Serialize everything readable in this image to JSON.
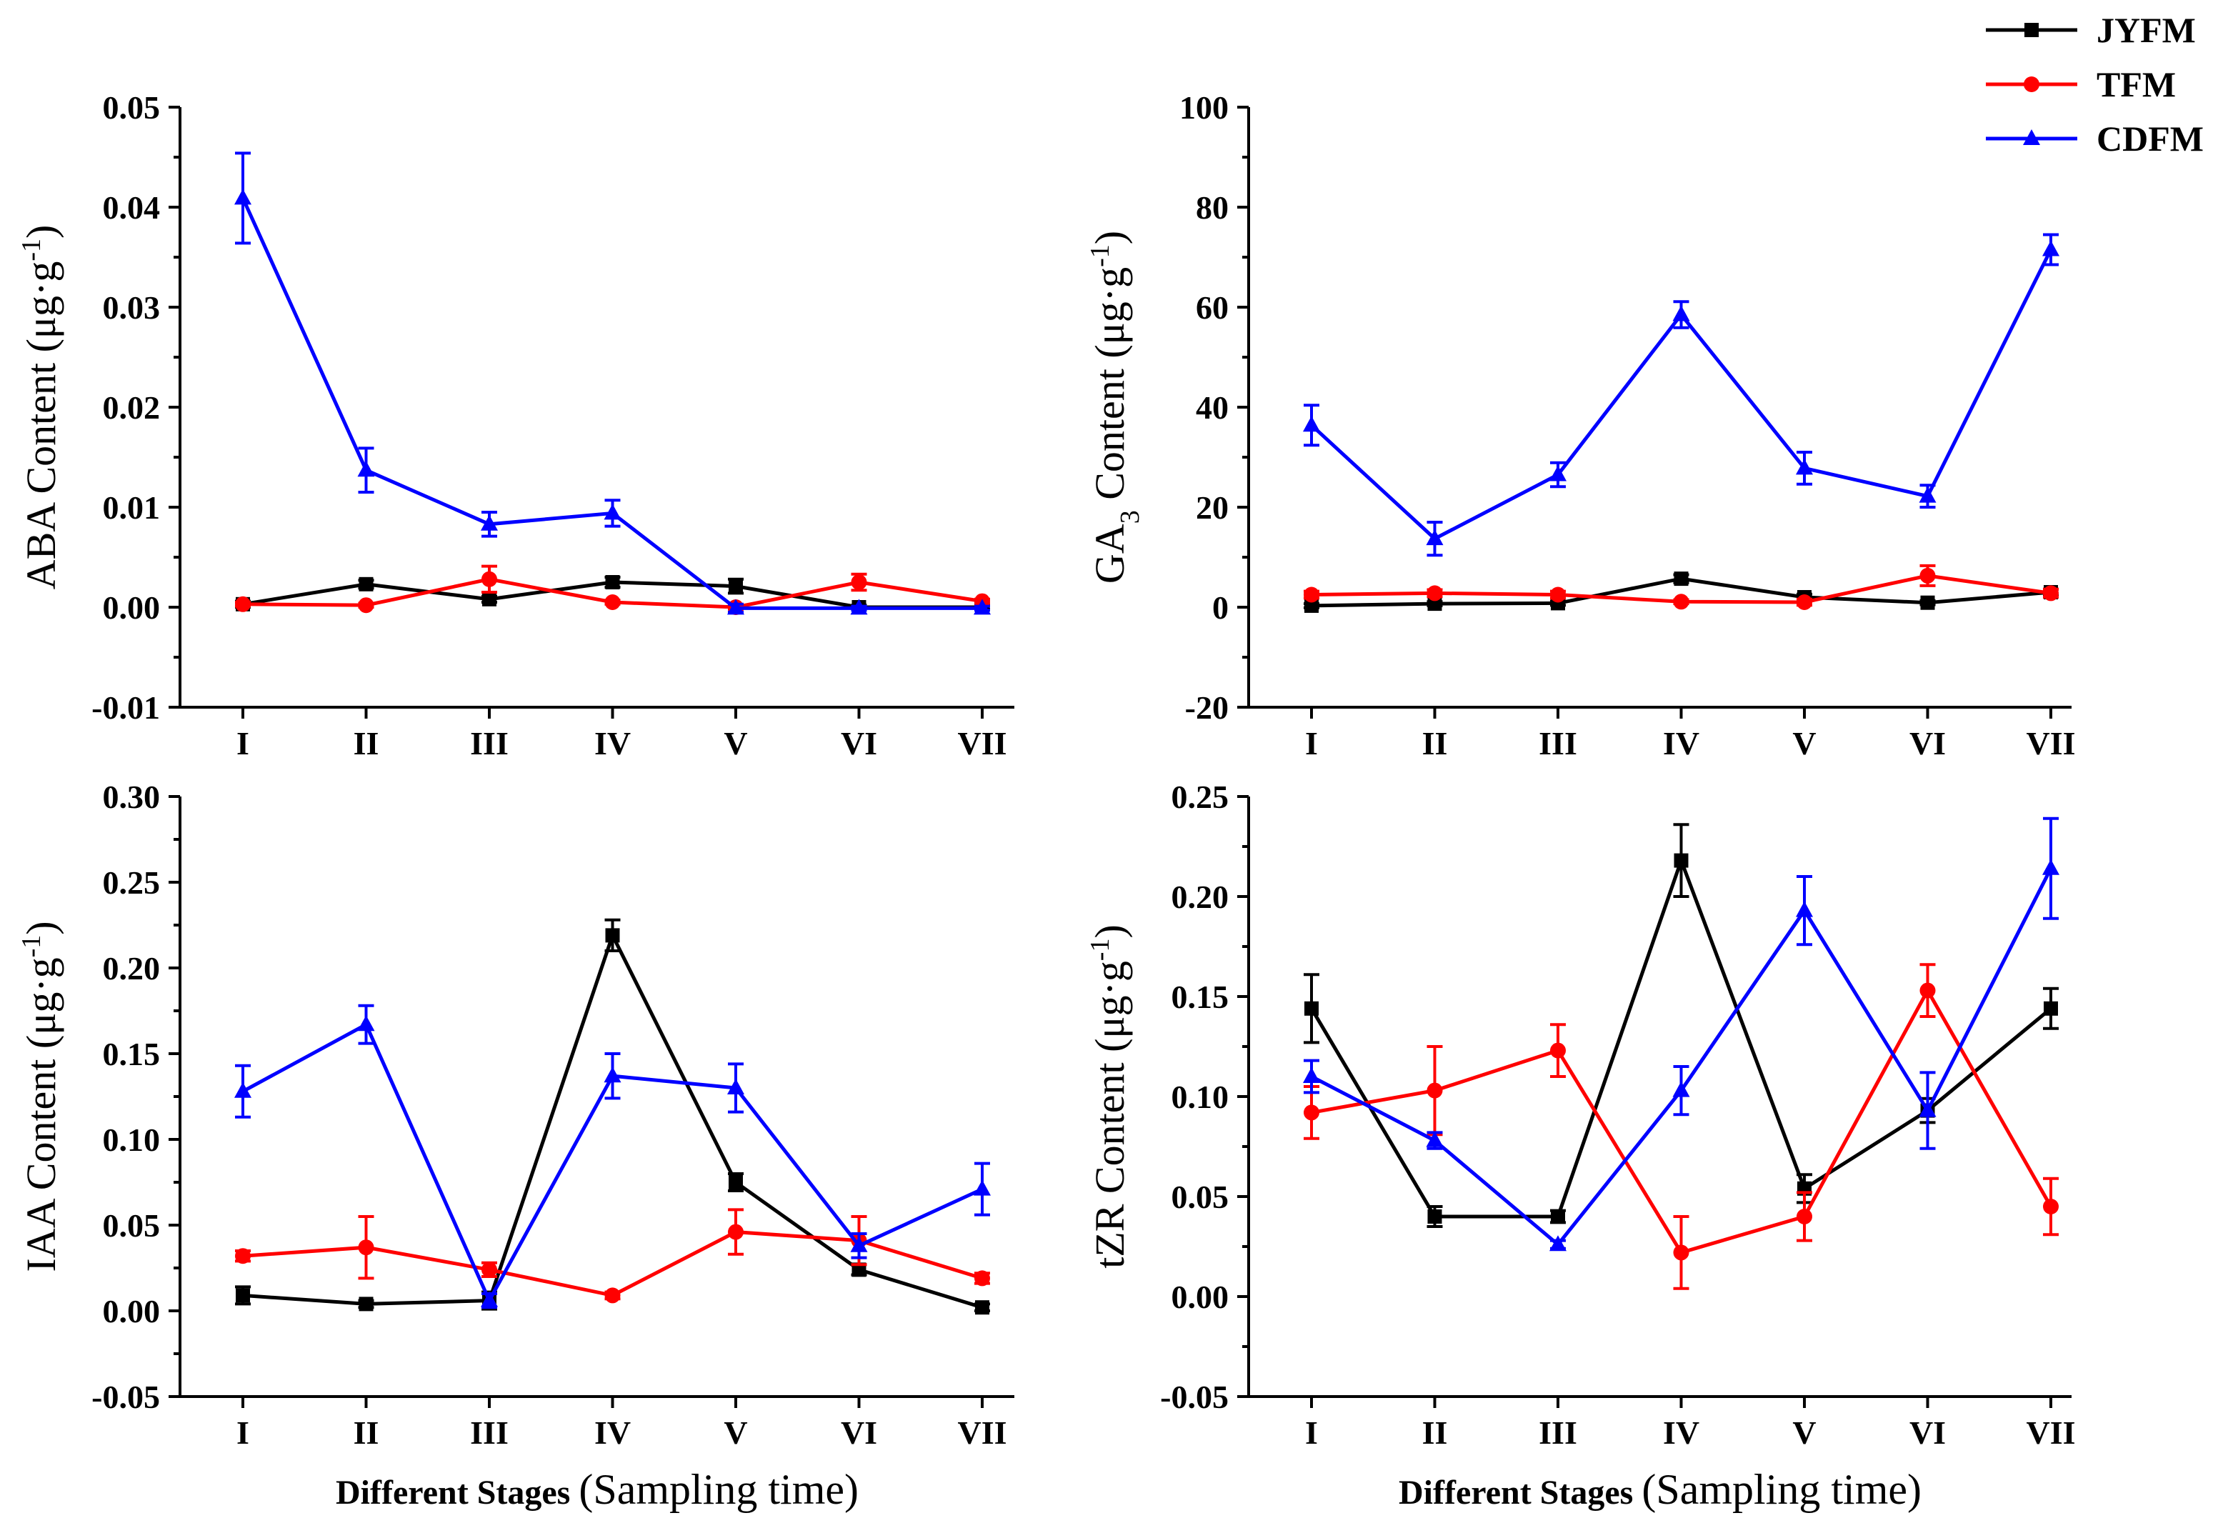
{
  "chart_data": [
    {
      "id": "aba",
      "type": "line",
      "ylabel_main": "ABA Content (μg·g",
      "ylabel_sup": "-1",
      "ylabel_end": ")",
      "categories": [
        "I",
        "II",
        "III",
        "IV",
        "V",
        "VI",
        "VII"
      ],
      "ylim": [
        -0.01,
        0.05
      ],
      "yticks": [
        -0.01,
        0.0,
        0.01,
        0.02,
        0.03,
        0.04,
        0.05
      ],
      "ytick_labels": [
        "-0.01",
        "0.00",
        "0.01",
        "0.02",
        "0.03",
        "0.04",
        "0.05"
      ],
      "xlabel_bold": "",
      "xlabel_regular": "",
      "series": [
        {
          "name": "JYFM",
          "values": [
            0.0003,
            0.0023,
            0.0008,
            0.0025,
            0.0021,
            0.0,
            0.0
          ],
          "errors": [
            0.0003,
            0.0004,
            0.0003,
            0.0005,
            0.0007,
            0.0002,
            0.0002
          ]
        },
        {
          "name": "TFM",
          "values": [
            0.0003,
            0.0002,
            0.0028,
            0.0005,
            0.0,
            0.0025,
            0.0006
          ],
          "errors": [
            0.0002,
            0.0002,
            0.0013,
            0.0002,
            0.0002,
            0.0008,
            0.0002
          ]
        },
        {
          "name": "CDFM",
          "values": [
            0.0409,
            0.0137,
            0.0083,
            0.0094,
            -0.0001,
            -0.0001,
            -0.0001
          ],
          "errors": [
            0.0045,
            0.0022,
            0.0012,
            0.0013,
            0.0004,
            0.0002,
            0.0002
          ]
        }
      ]
    },
    {
      "id": "ga3",
      "type": "line",
      "ylabel_main": "GA",
      "ylabel_sub": "3",
      "ylabel_rest": " Content (μg·g",
      "ylabel_sup": "-1",
      "ylabel_end": ")",
      "categories": [
        "I",
        "II",
        "III",
        "IV",
        "V",
        "VI",
        "VII"
      ],
      "ylim": [
        -20,
        100
      ],
      "yticks": [
        -20,
        0,
        20,
        40,
        60,
        80,
        100
      ],
      "ytick_labels": [
        "-20",
        "0",
        "20",
        "40",
        "60",
        "80",
        "100"
      ],
      "xlabel_bold": "",
      "xlabel_regular": "",
      "series": [
        {
          "name": "JYFM",
          "values": [
            0.3,
            0.7,
            0.8,
            5.7,
            2.0,
            0.9,
            3.0
          ],
          "errors": [
            0.4,
            0.4,
            0.4,
            0.8,
            0.6,
            0.4,
            0.6
          ]
        },
        {
          "name": "TFM",
          "values": [
            2.5,
            2.8,
            2.5,
            1.1,
            1.0,
            6.3,
            2.8
          ],
          "errors": [
            0.7,
            0.7,
            0.7,
            0.4,
            0.6,
            2.0,
            0.8
          ]
        },
        {
          "name": "CDFM",
          "values": [
            36.4,
            13.7,
            26.5,
            58.5,
            27.8,
            22.2,
            71.5
          ],
          "errors": [
            4.0,
            3.3,
            2.4,
            2.6,
            3.2,
            2.2,
            3.0
          ]
        }
      ]
    },
    {
      "id": "iaa",
      "type": "line",
      "ylabel_main": "IAA Content (μg·g",
      "ylabel_sup": "-1",
      "ylabel_end": ")",
      "categories": [
        "I",
        "II",
        "III",
        "IV",
        "V",
        "VI",
        "VII"
      ],
      "ylim": [
        -0.05,
        0.3
      ],
      "yticks": [
        -0.05,
        0.0,
        0.05,
        0.1,
        0.15,
        0.2,
        0.25,
        0.3
      ],
      "ytick_labels": [
        "-0.05",
        "0.00",
        "0.05",
        "0.10",
        "0.15",
        "0.20",
        "0.25",
        "0.30"
      ],
      "xlabel_bold": "Different Stages",
      "xlabel_regular": "(Sampling time)",
      "series": [
        {
          "name": "JYFM",
          "values": [
            0.009,
            0.004,
            0.006,
            0.219,
            0.075,
            0.024,
            0.002
          ],
          "errors": [
            0.005,
            0.002,
            0.005,
            0.009,
            0.005,
            0.003,
            0.002
          ]
        },
        {
          "name": "TFM",
          "values": [
            0.032,
            0.037,
            0.024,
            0.009,
            0.046,
            0.041,
            0.019
          ],
          "errors": [
            0.003,
            0.018,
            0.004,
            0.002,
            0.013,
            0.014,
            0.003
          ]
        },
        {
          "name": "CDFM",
          "values": [
            0.128,
            0.167,
            0.006,
            0.137,
            0.13,
            0.038,
            0.071
          ],
          "errors": [
            0.015,
            0.011,
            0.004,
            0.013,
            0.014,
            0.007,
            0.015
          ]
        }
      ]
    },
    {
      "id": "tzr",
      "type": "line",
      "ylabel_main": "tZR Content (μg·g",
      "ylabel_sup": "-1",
      "ylabel_end": ")",
      "categories": [
        "I",
        "II",
        "III",
        "IV",
        "V",
        "VI",
        "VII"
      ],
      "ylim": [
        -0.05,
        0.25
      ],
      "yticks": [
        -0.05,
        0.0,
        0.05,
        0.1,
        0.15,
        0.2,
        0.25
      ],
      "ytick_labels": [
        "-0.05",
        "0.00",
        "0.05",
        "0.10",
        "0.15",
        "0.20",
        "0.25"
      ],
      "xlabel_bold": "Different Stages",
      "xlabel_regular": "(Sampling time)",
      "series": [
        {
          "name": "JYFM",
          "values": [
            0.144,
            0.04,
            0.04,
            0.218,
            0.054,
            0.093,
            0.144
          ],
          "errors": [
            0.017,
            0.005,
            0.003,
            0.018,
            0.007,
            0.006,
            0.01
          ]
        },
        {
          "name": "TFM",
          "values": [
            0.092,
            0.103,
            0.123,
            0.022,
            0.04,
            0.153,
            0.045
          ],
          "errors": [
            0.013,
            0.022,
            0.013,
            0.018,
            0.012,
            0.013,
            0.014
          ]
        },
        {
          "name": "CDFM",
          "values": [
            0.11,
            0.078,
            0.026,
            0.103,
            0.193,
            0.093,
            0.214
          ],
          "errors": [
            0.008,
            0.004,
            0.002,
            0.012,
            0.017,
            0.019,
            0.025
          ]
        }
      ]
    }
  ],
  "legend": {
    "placement": "top-right",
    "items": [
      {
        "name": "JYFM",
        "color": "#000000",
        "marker": "square"
      },
      {
        "name": "TFM",
        "color": "#ff0000",
        "marker": "circle"
      },
      {
        "name": "CDFM",
        "color": "#0000ff",
        "marker": "triangle"
      }
    ]
  }
}
